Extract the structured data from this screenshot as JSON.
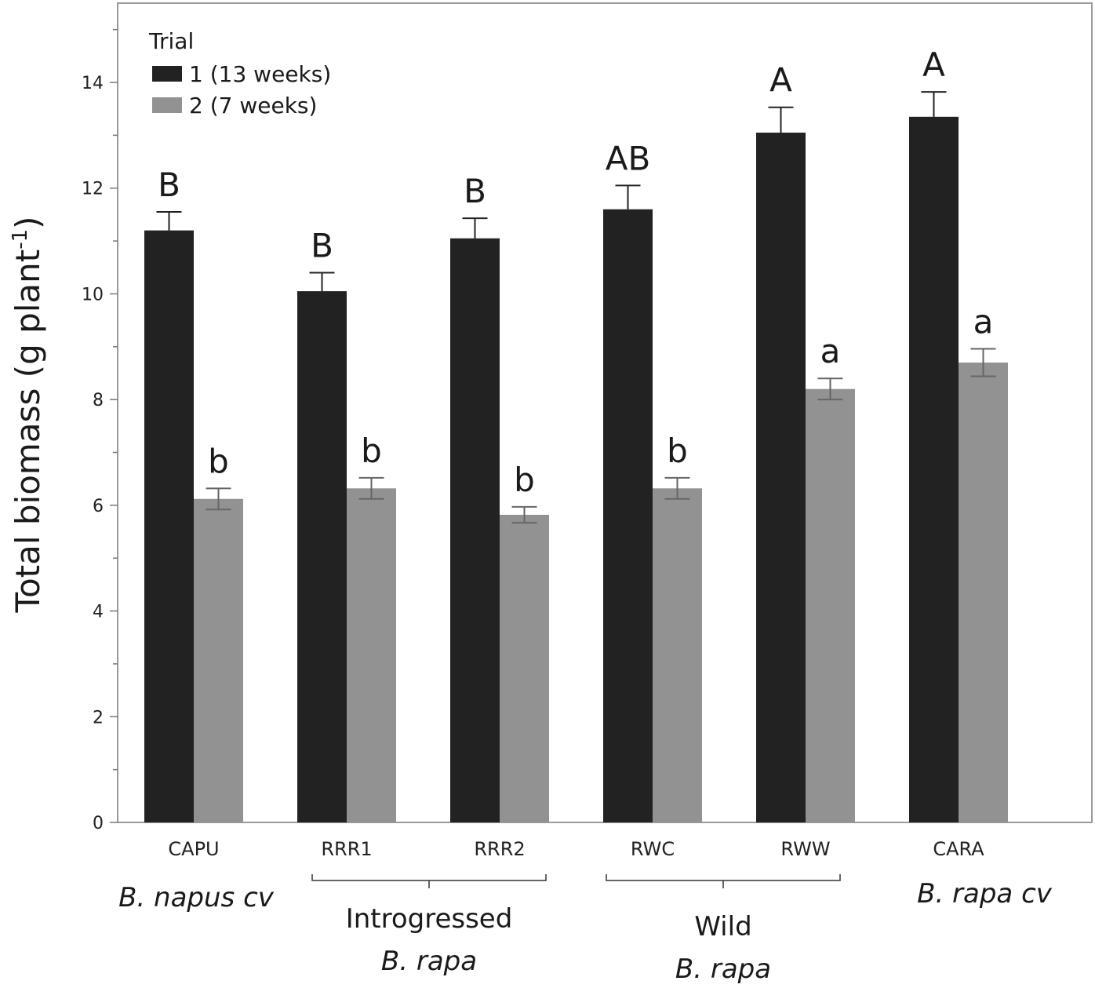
{
  "chart_data": {
    "type": "bar",
    "ylabel_main": "Total biomass (g plant",
    "ylabel_sup": "-1",
    "ylabel_close": ")",
    "ylim": [
      0,
      15.5
    ],
    "yticks": [
      0,
      2,
      4,
      6,
      8,
      10,
      12,
      14
    ],
    "grid": false,
    "legend": {
      "title": "Trial",
      "position": "top-left"
    },
    "categories": [
      "CAPU",
      "RRR1",
      "RRR2",
      "RWC",
      "RWW",
      "CARA"
    ],
    "series": [
      {
        "name": "1 (13 weeks)",
        "color": "#222222",
        "values": [
          11.2,
          10.05,
          11.05,
          11.6,
          13.05,
          13.35
        ],
        "errors": [
          0.35,
          0.35,
          0.38,
          0.45,
          0.48,
          0.47
        ],
        "letters": [
          "B",
          "B",
          "B",
          "AB",
          "A",
          "A"
        ]
      },
      {
        "name": "2 (7 weeks)",
        "color": "#929292",
        "values": [
          6.12,
          6.32,
          5.82,
          6.32,
          8.2,
          8.7
        ],
        "errors": [
          0.2,
          0.2,
          0.15,
          0.2,
          0.2,
          0.26
        ],
        "letters": [
          "b",
          "b",
          "b",
          "b",
          "a",
          "a"
        ]
      }
    ],
    "group_labels": [
      {
        "line1": "B. napus cv",
        "line1_italic": true,
        "line2": ""
      },
      {
        "line1": "Introgressed",
        "line1_italic": false,
        "line2": "B. rapa"
      },
      {
        "line1": "Wild",
        "line1_italic": false,
        "line2": "B. rapa"
      },
      {
        "line1": "B. rapa cv",
        "line1_italic": true,
        "line2": ""
      }
    ]
  }
}
